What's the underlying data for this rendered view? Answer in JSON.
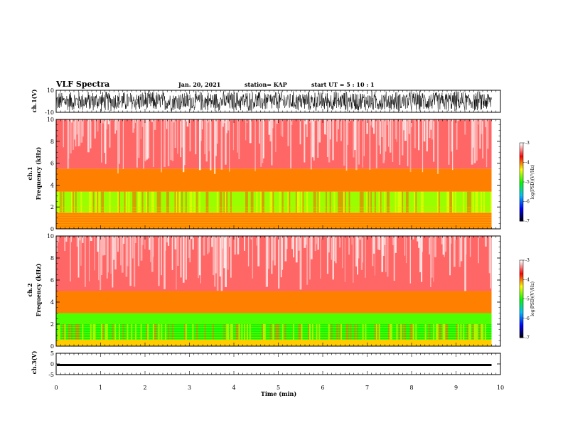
{
  "header": {
    "title": "VLF Spectra",
    "date": "Jan. 20, 2021",
    "station": "station= KAP",
    "start_ut": "start UT =  5 : 10 : 1"
  },
  "colors": {
    "waveform": "#000000",
    "background_signal": "#ff2a2a",
    "colormap": [
      "#000000",
      "#0000ff",
      "#00c0ff",
      "#00ff00",
      "#ffff00",
      "#ff0000",
      "#ffffff"
    ]
  },
  "chart_data": [
    {
      "type": "line",
      "panel": "ch1-waveform",
      "ylabel": "ch.1(V)",
      "ylim": [
        -10,
        10
      ],
      "yticks": [
        "10",
        "-10"
      ],
      "xlim": [
        0,
        10
      ],
      "description_values": {
        "amplitude_min": -10,
        "amplitude_max": 10,
        "data_end_min": 9.8
      }
    },
    {
      "type": "heatmap",
      "panel": "ch1-spectrogram",
      "ylabel": "ch.1 Frequency (kHz)",
      "ylim": [
        0,
        10
      ],
      "yticks": [
        "0",
        "2",
        "4",
        "6",
        "8",
        "10"
      ],
      "xlim": [
        0,
        10
      ],
      "bands": [
        {
          "fmin": 0.0,
          "fmax": 1.5,
          "level": -4.0
        },
        {
          "fmin": 1.5,
          "fmax": 3.4,
          "level": -4.6
        },
        {
          "fmin": 3.4,
          "fmax": 5.5,
          "level": -4.0
        },
        {
          "fmin": 5.5,
          "fmax": 10.0,
          "level": -3.4
        }
      ],
      "colorbar": {
        "label": "log(PSD)(V²/Hz)",
        "min": -7,
        "max": -3,
        "ticks": [
          "-3",
          "-4",
          "-5",
          "-6",
          "-7"
        ]
      }
    },
    {
      "type": "heatmap",
      "panel": "ch2-spectrogram",
      "ylabel": "ch.2 Frequency (kHz)",
      "ylim": [
        0,
        10
      ],
      "yticks": [
        "0",
        "2",
        "4",
        "6",
        "8",
        "10"
      ],
      "xlim": [
        0,
        10
      ],
      "bands": [
        {
          "fmin": 0.0,
          "fmax": 0.6,
          "level": -4.2
        },
        {
          "fmin": 0.6,
          "fmax": 2.0,
          "level": -5.0
        },
        {
          "fmin": 2.0,
          "fmax": 3.0,
          "level": -4.8
        },
        {
          "fmin": 3.0,
          "fmax": 5.0,
          "level": -4.0
        },
        {
          "fmin": 5.0,
          "fmax": 10.0,
          "level": -3.4
        }
      ],
      "colorbar": {
        "label": "log(PSD)(V²/Hz)",
        "min": -7,
        "max": -3,
        "ticks": [
          "-3",
          "-4",
          "-5",
          "-6",
          "-7"
        ]
      }
    },
    {
      "type": "line",
      "panel": "ch3-waveform",
      "ylabel": "ch.3(V)",
      "ylim": [
        -5,
        5
      ],
      "yticks": [
        "5",
        "0",
        "-5"
      ],
      "xlim": [
        0,
        10
      ],
      "description_values": {
        "amplitude_min": -1,
        "amplitude_max": 0
      }
    }
  ],
  "xaxis": {
    "label": "Time (min)",
    "ticks": [
      "0",
      "1",
      "2",
      "3",
      "4",
      "5",
      "6",
      "7",
      "8",
      "9",
      "10"
    ]
  }
}
